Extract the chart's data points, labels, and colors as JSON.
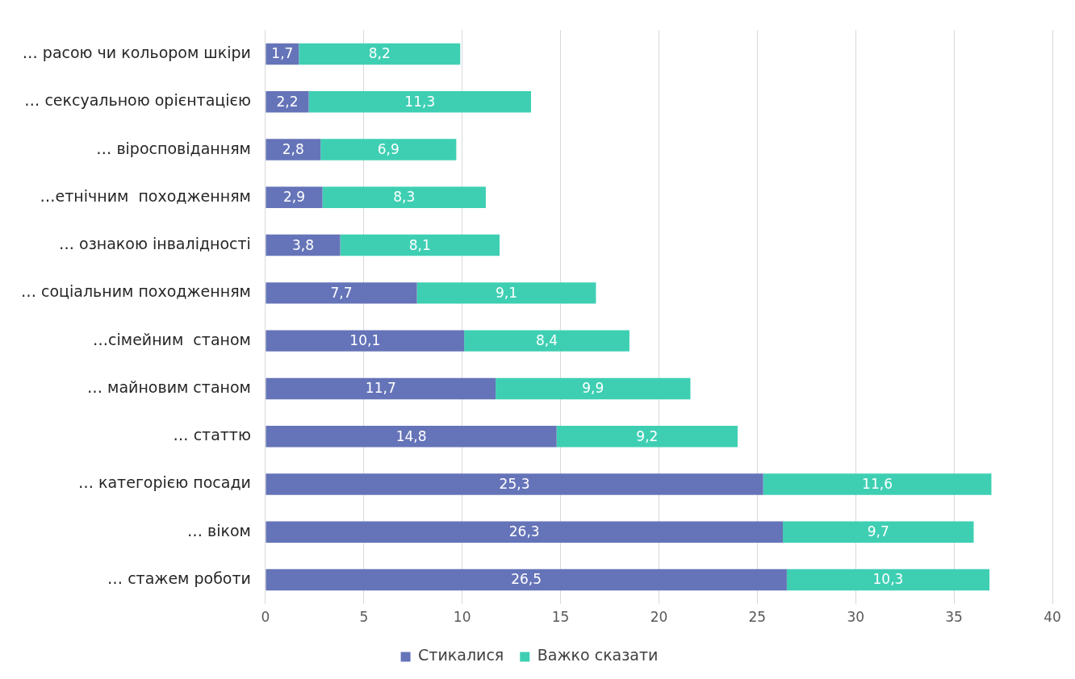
{
  "chart_data": {
    "type": "bar",
    "orientation": "horizontal",
    "stacked": true,
    "categories": [
      "… расою чи кольором шкіри",
      "… сексуальною орієнтацією",
      "… віросповіданням",
      "…етнічним  походженням",
      "… ознакою інвалідності",
      "… соціальним походженням",
      "…сімейним  станом",
      "… майновим станом",
      "… статтю",
      "… категорією посади",
      "… віком",
      "… стажем роботи"
    ],
    "series": [
      {
        "name": "Стикалися",
        "color": "#6574b8",
        "values": [
          1.7,
          2.2,
          2.8,
          2.9,
          3.8,
          7.7,
          10.1,
          11.7,
          14.8,
          25.3,
          26.3,
          26.5
        ],
        "value_labels": [
          "1,7",
          "2,2",
          "2,8",
          "2,9",
          "3,8",
          "7,7",
          "10,1",
          "11,7",
          "14,8",
          "25,3",
          "26,3",
          "26,5"
        ]
      },
      {
        "name": "Важко сказати",
        "color": "#3ecfb3",
        "values": [
          8.2,
          11.3,
          6.9,
          8.3,
          8.1,
          9.1,
          8.4,
          9.9,
          9.2,
          11.6,
          9.7,
          10.3
        ],
        "value_labels": [
          "8,2",
          "11,3",
          "6,9",
          "8,3",
          "8,1",
          "9,1",
          "8,4",
          "9,9",
          "9,2",
          "11,6",
          "9,7",
          "10,3"
        ]
      }
    ],
    "xlim": [
      0,
      40
    ],
    "xticks": [
      0,
      5,
      10,
      15,
      20,
      25,
      30,
      35,
      40
    ],
    "grid": "x",
    "legend": "bottom"
  }
}
